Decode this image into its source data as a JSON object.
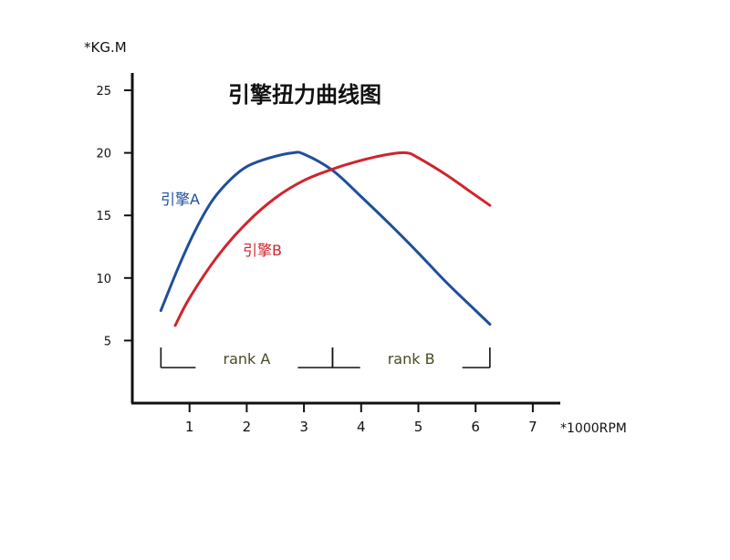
{
  "chart_data": {
    "type": "line",
    "title": "引擎扭力曲线图",
    "ylabel": "*KG.M",
    "xlabel": "*1000RPM",
    "xlim": [
      0,
      7.5
    ],
    "ylim": [
      0,
      25
    ],
    "xticks": [
      1,
      2,
      3,
      4,
      5,
      6,
      7
    ],
    "yticks": [
      5,
      10,
      15,
      20,
      25
    ],
    "grid": false,
    "series": [
      {
        "name": "引擎A",
        "color": "#1f4e9c",
        "x": [
          0.5,
          0.8,
          1.1,
          1.4,
          1.7,
          2.0,
          2.4,
          2.8,
          3.0,
          3.5,
          4.0,
          4.5,
          5.0,
          5.5,
          6.0,
          6.25
        ],
        "y": [
          7.4,
          10.8,
          13.8,
          16.2,
          17.8,
          18.9,
          19.6,
          20.0,
          19.9,
          18.6,
          16.5,
          14.3,
          12.0,
          9.6,
          7.4,
          6.3
        ]
      },
      {
        "name": "引擎B",
        "color": "#d0242c",
        "x": [
          0.75,
          1.0,
          1.5,
          2.0,
          2.5,
          3.0,
          3.5,
          4.0,
          4.5,
          4.8,
          5.0,
          5.5,
          6.0,
          6.25
        ],
        "y": [
          6.2,
          8.4,
          11.8,
          14.4,
          16.4,
          17.8,
          18.7,
          19.4,
          19.9,
          20.0,
          19.6,
          18.2,
          16.6,
          15.8
        ]
      }
    ],
    "annotations": [
      {
        "text": "rank A",
        "x_start": 0.5,
        "x_end": 3.5
      },
      {
        "text": "rank B",
        "x_start": 3.5,
        "x_end": 6.25
      }
    ]
  }
}
